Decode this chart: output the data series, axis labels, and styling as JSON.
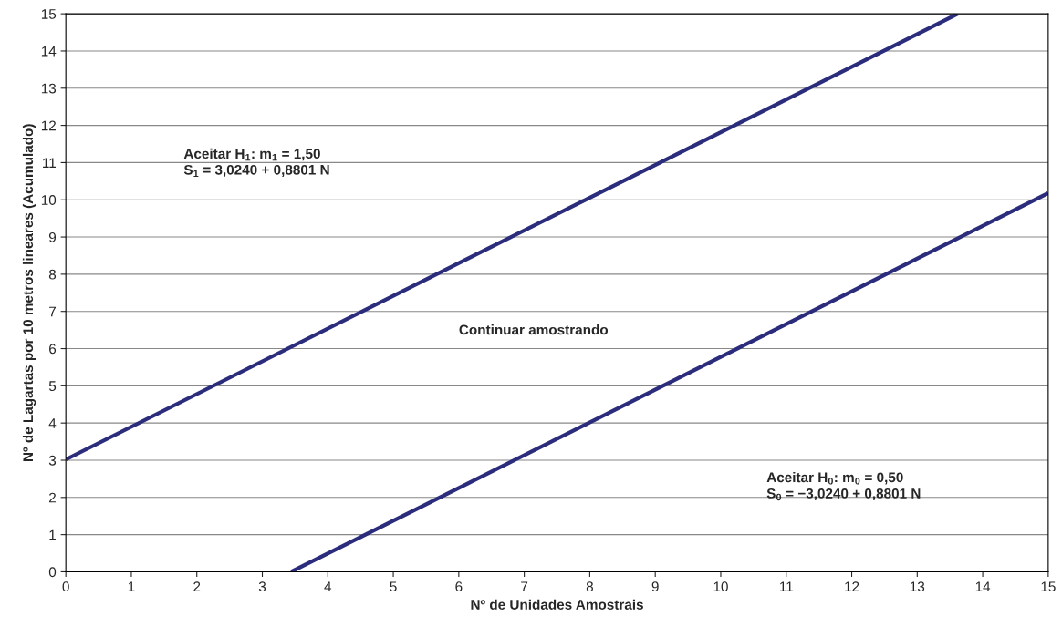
{
  "chart_data": {
    "type": "line",
    "xlabel": "Nº de Unidades Amostrais",
    "ylabel": "Nº de Lagartas por 10 metros lineares (Acumulado)",
    "series": [
      {
        "color": "#2b2d7c",
        "x": [
          0,
          13.62
        ],
        "values": [
          3.02,
          15
        ]
      },
      {
        "color": "#2b2d7c",
        "x": [
          3.44,
          15
        ],
        "values": [
          0,
          10.18
        ]
      }
    ],
    "xlim": [
      0,
      15
    ],
    "ylim": [
      0,
      15
    ],
    "xticks": [
      0,
      1,
      2,
      3,
      4,
      5,
      6,
      7,
      8,
      9,
      10,
      11,
      12,
      13,
      14,
      15
    ],
    "yticks": [
      0,
      1,
      2,
      3,
      4,
      5,
      6,
      7,
      8,
      9,
      10,
      11,
      12,
      13,
      14,
      15
    ],
    "grid": "y",
    "legend": false,
    "marker": "none",
    "line_style": "solid",
    "annotations": [
      "Aceitar H$_{1}$: m$_{1}$ = 1,50\nS$_{1}$ = 3,0240 + 0,8801 N",
      "Continuar amostrando",
      "Aceitar H$_{0}$: m$_{0}$ = 0,50\nS$_{0}$ = −3,0240 + 0,8801 N"
    ]
  }
}
